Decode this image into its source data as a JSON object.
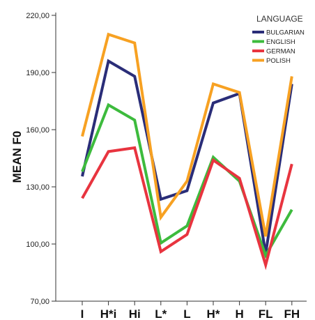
{
  "chart_data": {
    "type": "line",
    "ylabel": "MEAN F0",
    "xlabel": "",
    "title": "",
    "categories": [
      "I",
      "H*i",
      "Hi",
      "L*",
      "L",
      "H*",
      "H",
      "FL",
      "FH"
    ],
    "ylim": [
      70,
      220
    ],
    "yticks": [
      "70,00",
      "100,00",
      "130,00",
      "160,00",
      "190,00",
      "220,00"
    ],
    "yticks_values": [
      70,
      100,
      130,
      160,
      190,
      220
    ],
    "grid": false,
    "legend_position": "top-right",
    "legend_title": "LANGUAGE",
    "series": [
      {
        "name": "BULGARIAN",
        "color": "#2a2d78",
        "values": [
          135.5,
          196.0,
          188.0,
          123.5,
          128.0,
          174.0,
          179.0,
          95.0,
          184.0
        ]
      },
      {
        "name": "ENGLISH",
        "color": "#3dbb3d",
        "values": [
          138.0,
          173.0,
          165.0,
          100.5,
          109.5,
          145.5,
          133.0,
          94.0,
          118.0
        ]
      },
      {
        "name": "GERMAN",
        "color": "#e8343f",
        "values": [
          124.0,
          148.5,
          150.5,
          96.0,
          105.0,
          144.0,
          134.5,
          89.0,
          142.0
        ]
      },
      {
        "name": "POLISH",
        "color": "#f7a122",
        "values": [
          156.5,
          210.0,
          205.5,
          114.0,
          133.0,
          184.0,
          179.5,
          104.0,
          188.0
        ]
      }
    ]
  }
}
